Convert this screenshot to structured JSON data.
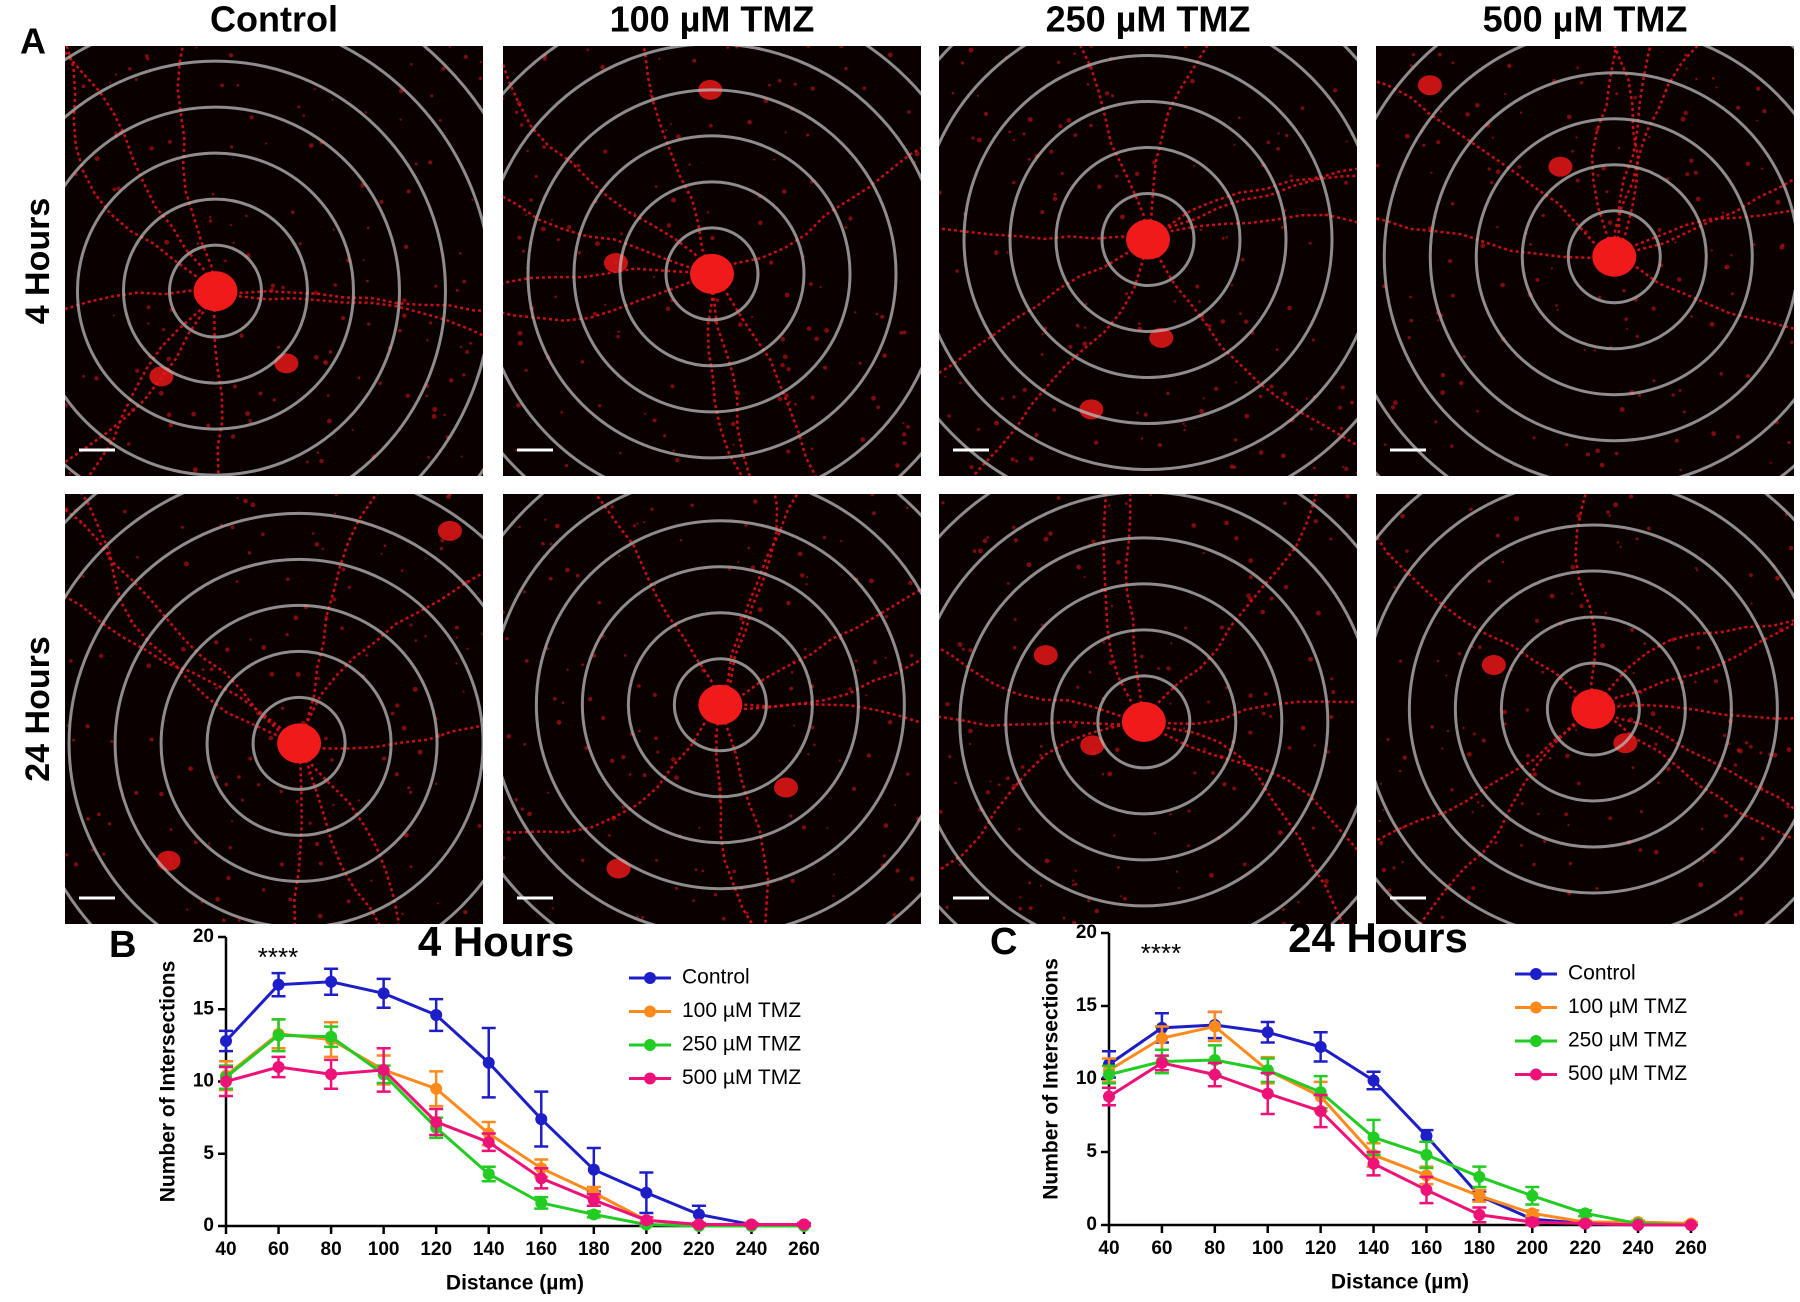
{
  "figure": {
    "panel_labels": [
      "A",
      "B",
      "C"
    ],
    "columns": [
      "Control",
      "100 µM TMZ",
      "250 µM TMZ",
      "500 µM TMZ"
    ],
    "rows": [
      "4 Hours",
      "24 Hours"
    ]
  },
  "chart_data": [
    {
      "type": "line",
      "title": "4 Hours",
      "annotation": "****",
      "xlabel": "Distance (µm)",
      "ylabel": "Number of Intersections",
      "x": [
        40,
        60,
        80,
        100,
        120,
        140,
        160,
        180,
        200,
        220,
        240,
        260
      ],
      "xlim": [
        40,
        260
      ],
      "xticks": [
        40,
        60,
        80,
        100,
        120,
        140,
        160,
        180,
        200,
        220,
        240,
        260
      ],
      "ylim": [
        0,
        20
      ],
      "yticks": [
        0,
        5,
        10,
        15,
        20
      ],
      "grid": false,
      "legend": "upper right",
      "series": [
        {
          "name": "Control",
          "color": "#1e1ec8",
          "values": [
            12.8,
            16.7,
            16.9,
            16.1,
            14.6,
            11.3,
            7.4,
            3.9,
            2.3,
            0.8,
            0.1,
            0.1
          ],
          "errors": [
            0.7,
            0.8,
            0.9,
            1.0,
            1.1,
            2.4,
            1.9,
            1.5,
            1.4,
            0.6,
            0.1,
            0.1
          ]
        },
        {
          "name": "100 µM TMZ",
          "color": "#ff8a1c",
          "values": [
            10.4,
            13.3,
            12.9,
            10.8,
            9.5,
            6.4,
            4.0,
            2.3,
            0.4,
            0.1,
            0.1,
            0.1
          ],
          "errors": [
            1.0,
            1.0,
            1.2,
            1.0,
            1.2,
            0.8,
            0.6,
            0.4,
            0.2,
            0.1,
            0.1,
            0.1
          ]
        },
        {
          "name": "250 µM TMZ",
          "color": "#22cc22",
          "values": [
            10.3,
            13.2,
            13.1,
            10.5,
            6.8,
            3.6,
            1.6,
            0.8,
            0.1,
            0.0,
            0.0,
            0.0
          ],
          "errors": [
            0.8,
            1.1,
            0.7,
            0.6,
            0.7,
            0.5,
            0.4,
            0.2,
            0.1,
            0.0,
            0.0,
            0.0
          ]
        },
        {
          "name": "500 µM TMZ",
          "color": "#ee1177",
          "values": [
            10.0,
            11.0,
            10.5,
            10.8,
            7.2,
            5.8,
            3.3,
            1.8,
            0.4,
            0.1,
            0.1,
            0.1
          ],
          "errors": [
            1.0,
            0.7,
            1.0,
            1.5,
            0.9,
            0.6,
            0.7,
            0.4,
            0.2,
            0.1,
            0.1,
            0.1
          ]
        }
      ]
    },
    {
      "type": "line",
      "title": "24 Hours",
      "annotation": "****",
      "xlabel": "Distance (µm)",
      "ylabel": "Number of Intersections",
      "x": [
        40,
        60,
        80,
        100,
        120,
        140,
        160,
        180,
        200,
        220,
        240,
        260
      ],
      "xlim": [
        40,
        260
      ],
      "xticks": [
        40,
        60,
        80,
        100,
        120,
        140,
        160,
        180,
        200,
        220,
        240,
        260
      ],
      "ylim": [
        0,
        20
      ],
      "yticks": [
        0,
        5,
        10,
        15,
        20
      ],
      "grid": false,
      "legend": "upper right",
      "series": [
        {
          "name": "Control",
          "color": "#1e1ec8",
          "values": [
            11.0,
            13.5,
            13.7,
            13.2,
            12.2,
            9.9,
            6.1,
            2.0,
            0.4,
            0.1,
            0.0,
            0.0
          ],
          "errors": [
            0.9,
            1.0,
            0.9,
            0.7,
            1.0,
            0.6,
            0.4,
            0.3,
            0.2,
            0.1,
            0.0,
            0.0
          ]
        },
        {
          "name": "100 µM TMZ",
          "color": "#ff8a1c",
          "values": [
            10.6,
            12.8,
            13.6,
            10.6,
            8.8,
            4.8,
            3.4,
            2.0,
            0.8,
            0.2,
            0.2,
            0.1
          ],
          "errors": [
            0.8,
            0.8,
            1.0,
            0.9,
            1.0,
            0.8,
            0.6,
            0.4,
            0.2,
            0.1,
            0.1,
            0.1
          ]
        },
        {
          "name": "250 µM TMZ",
          "color": "#22cc22",
          "values": [
            10.3,
            11.2,
            11.3,
            10.6,
            9.1,
            6.0,
            4.8,
            3.3,
            2.0,
            0.8,
            0.1,
            0.0
          ],
          "errors": [
            0.6,
            0.8,
            1.0,
            0.8,
            1.1,
            1.2,
            0.9,
            0.7,
            0.6,
            0.2,
            0.1,
            0.0
          ]
        },
        {
          "name": "500 µM TMZ",
          "color": "#ee1177",
          "values": [
            8.8,
            11.1,
            10.3,
            9.0,
            7.8,
            4.2,
            2.4,
            0.7,
            0.2,
            0.1,
            0.0,
            0.0
          ],
          "errors": [
            0.6,
            0.5,
            0.8,
            1.4,
            1.1,
            0.8,
            0.9,
            0.5,
            0.2,
            0.1,
            0.0,
            0.0
          ]
        }
      ]
    }
  ]
}
